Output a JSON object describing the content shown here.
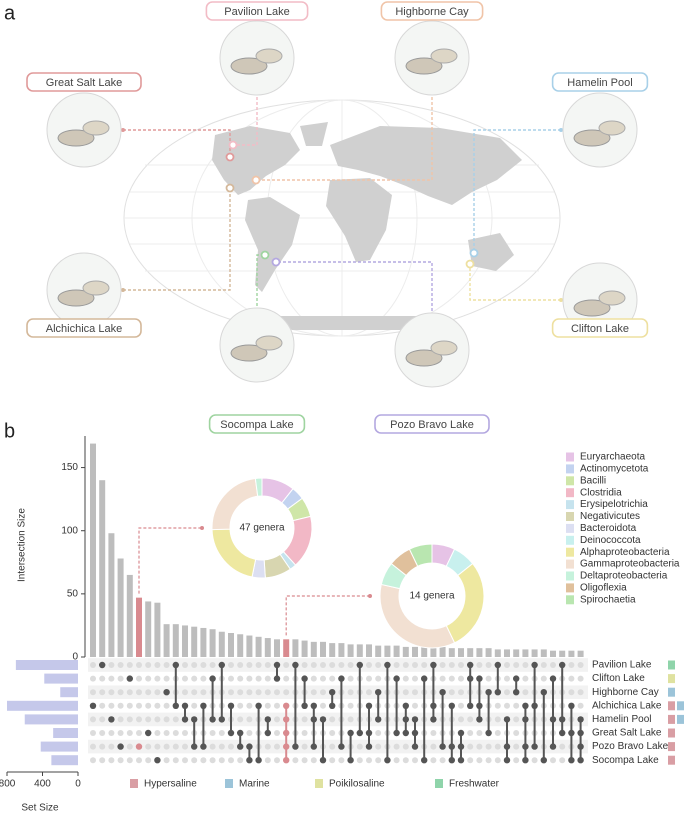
{
  "map": {
    "panel_label": "a",
    "sites": [
      {
        "label": "Great Salt Lake",
        "color": "#e09a9a"
      },
      {
        "label": "Pavilion Lake",
        "color": "#f2bcc6"
      },
      {
        "label": "Highborne Cay",
        "color": "#f0c4a8"
      },
      {
        "label": "Hamelin Pool",
        "color": "#a8d0e8"
      },
      {
        "label": "Alchichica Lake",
        "color": "#d4b89a"
      },
      {
        "label": "Socompa Lake",
        "color": "#9fd4a0"
      },
      {
        "label": "Pozo Bravo Lake",
        "color": "#b4a8e0"
      },
      {
        "label": "Clifton Lake",
        "color": "#eee0a0"
      }
    ]
  },
  "chart_data": {
    "type": "upset",
    "panel_label": "b",
    "ylabel": "Intersection Size",
    "ylim": [
      0,
      175
    ],
    "yticks": [
      0,
      50,
      100,
      150
    ],
    "values": [
      169,
      140,
      98,
      78,
      65,
      47,
      44,
      43,
      26,
      26,
      25,
      24,
      23,
      22,
      20,
      19,
      18,
      17,
      16,
      15,
      14,
      14,
      14,
      13,
      12,
      12,
      11,
      11,
      10,
      10,
      10,
      9,
      9,
      9,
      8,
      8,
      8,
      8,
      8,
      7,
      7,
      7,
      7,
      7,
      6,
      6,
      6,
      6,
      6,
      6,
      5,
      5,
      5,
      5
    ],
    "color": "#bdbdbd",
    "highlight_color": "#d98a8f",
    "highlight": [
      5,
      21
    ],
    "sets": [
      "Pavilion Lake",
      "Clifton Lake",
      "Highborne Cay",
      "Alchichica Lake",
      "Hamelin Pool",
      "Great Salt Lake",
      "Pozo Bravo Lake",
      "Socompa Lake"
    ],
    "set_sizes": [
      700,
      380,
      200,
      800,
      600,
      280,
      420,
      300
    ],
    "set_size_color": "#c5c8ea",
    "set_size_label": "Set Size",
    "set_size_xlim": [
      800,
      0
    ],
    "set_size_xticks": [
      800,
      400,
      0
    ],
    "set_types": [
      [
        3
      ],
      [
        2
      ],
      [
        1
      ],
      [
        0,
        1
      ],
      [
        0,
        1
      ],
      [
        0
      ],
      [
        0
      ],
      [
        0
      ]
    ],
    "intersections": [
      [
        3
      ],
      [
        0
      ],
      [
        4
      ],
      [
        6
      ],
      [
        1
      ],
      [
        6
      ],
      [
        5
      ],
      [
        7
      ],
      [
        2
      ],
      [
        0,
        3
      ],
      [
        3,
        4
      ],
      [
        4,
        6
      ],
      [
        3,
        6
      ],
      [
        1,
        4
      ],
      [
        0,
        4
      ],
      [
        3,
        5
      ],
      [
        5,
        6
      ],
      [
        6,
        7
      ],
      [
        3,
        7
      ],
      [
        4,
        5
      ],
      [
        0,
        1
      ],
      [
        3,
        4,
        5,
        6,
        7
      ],
      [
        0,
        6
      ],
      [
        1,
        3
      ],
      [
        3,
        4,
        6
      ],
      [
        4,
        7
      ],
      [
        2,
        3
      ],
      [
        1,
        6
      ],
      [
        5,
        7
      ],
      [
        0,
        5
      ],
      [
        3,
        5,
        6
      ],
      [
        2,
        4
      ],
      [
        0,
        7
      ],
      [
        1,
        5
      ],
      [
        3,
        4,
        5
      ],
      [
        4,
        5,
        6
      ],
      [
        1,
        7
      ],
      [
        0,
        3,
        4
      ],
      [
        2,
        6
      ],
      [
        3,
        6,
        7
      ],
      [
        5,
        6,
        7
      ],
      [
        0,
        1,
        3
      ],
      [
        1,
        3,
        4
      ],
      [
        2,
        5
      ],
      [
        0,
        2
      ],
      [
        4,
        6,
        7
      ],
      [
        1,
        2
      ],
      [
        3,
        4,
        6,
        7
      ],
      [
        0,
        3,
        6
      ],
      [
        2,
        7
      ],
      [
        1,
        4,
        6
      ],
      [
        0,
        4,
        5
      ],
      [
        3,
        5,
        7
      ],
      [
        4,
        5,
        6,
        7
      ]
    ],
    "types": [
      {
        "name": "Hypersaline",
        "color": "#d99ea4"
      },
      {
        "name": "Marine",
        "color": "#9cc4d9"
      },
      {
        "name": "Poikilosaline",
        "color": "#dfe2a0"
      },
      {
        "name": "Freshwater",
        "color": "#8fd4aa"
      }
    ],
    "taxa": [
      {
        "name": "Euryarchaeota",
        "color": "#e6c3e6"
      },
      {
        "name": "Actinomycetota",
        "color": "#c3d3f0"
      },
      {
        "name": "Bacilli",
        "color": "#cfe6a8"
      },
      {
        "name": "Clostridia",
        "color": "#f2b8c6"
      },
      {
        "name": "Erysipelotrichia",
        "color": "#c6e3ee"
      },
      {
        "name": "Negativicutes",
        "color": "#d8d6b0"
      },
      {
        "name": "Bacteroidota",
        "color": "#dcdff2"
      },
      {
        "name": "Deinococcota",
        "color": "#c8f0ee"
      },
      {
        "name": "Alphaproteobacteria",
        "color": "#eee8a0"
      },
      {
        "name": "Gammaproteobacteria",
        "color": "#f2e0d2"
      },
      {
        "name": "Deltaproteobacteria",
        "color": "#c6f2dc"
      },
      {
        "name": "Oligoflexia",
        "color": "#e0c09c"
      },
      {
        "name": "Spirochaetia",
        "color": "#b9e6b0"
      }
    ],
    "donuts": [
      {
        "label": "47 genera",
        "values": [
          5,
          2,
          3,
          8,
          1,
          4,
          2,
          0,
          10,
          11,
          1,
          0,
          0
        ]
      },
      {
        "label": "14 genera",
        "values": [
          1,
          0,
          0,
          0,
          0,
          0,
          0,
          1,
          4,
          5,
          1,
          1,
          1
        ]
      }
    ]
  }
}
